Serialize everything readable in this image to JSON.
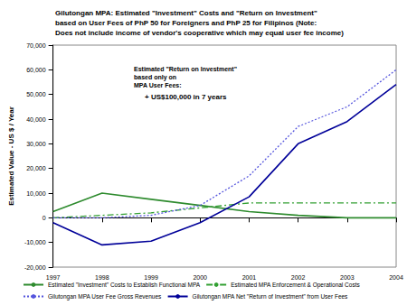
{
  "chart_data": {
    "type": "line",
    "title": "Gilutongan MPA: Estimated \"Investment\" Costs and \"Return on Investment\"\nbased on User Fees of PhP 50 for Foreigners and PhP 25 for Filipinos (Note:\nDoes not include income of vendor's cooperative which may equal user fee income)",
    "y_label": "Estimated Value - US $ / Year",
    "annotations": [
      "Estimated \"Return on Investment\"\nbased only on\nMPA User Fees:",
      "+ US$100,000 in 7 years"
    ],
    "categories": [
      "1997",
      "1998",
      "1999",
      "2000",
      "2001",
      "2002",
      "2003",
      "2004"
    ],
    "series": [
      {
        "name": "Estimated \"Investment\" Costs to Establish Functional MPA",
        "color": "#2e8b2e",
        "line_style": "solid",
        "values": [
          2500,
          10000,
          7500,
          5000,
          2500,
          1000,
          0,
          0
        ]
      },
      {
        "name": "Estimated MPA Enforcement & Operational Costs",
        "color": "#33a033",
        "line_style": "dashdot",
        "values": [
          0,
          1000,
          2000,
          4000,
          6000,
          6000,
          6000,
          6000
        ]
      },
      {
        "name": "Gilutongan MPA User Fee Gross Revenues",
        "color": "#5555dd",
        "line_style": "dotted",
        "values": [
          0,
          0,
          1000,
          5000,
          17000,
          37000,
          45000,
          60000
        ]
      },
      {
        "name": "Gilutongan MPA Net \"Return of Investment\" from User Fees",
        "color": "#000099",
        "line_style": "solid",
        "values": [
          -2000,
          -11000,
          -9500,
          -2000,
          8500,
          30000,
          39000,
          54000
        ]
      }
    ],
    "ylim": [
      -20000,
      70000
    ],
    "yticks": [
      {
        "value": -20000,
        "label": "-20,000"
      },
      {
        "value": -10000,
        "label": "-10,000"
      },
      0,
      {
        "value": 10000,
        "label": "10,000"
      },
      {
        "value": 20000,
        "label": "20,000"
      },
      {
        "value": 30000,
        "label": "30,000"
      },
      {
        "value": 40000,
        "label": "40,000"
      },
      {
        "value": 50000,
        "label": "50,000"
      },
      {
        "value": 60000,
        "label": "60,000"
      },
      {
        "value": 70000,
        "label": "70,000"
      }
    ],
    "grid": false,
    "legend": "bottom"
  }
}
